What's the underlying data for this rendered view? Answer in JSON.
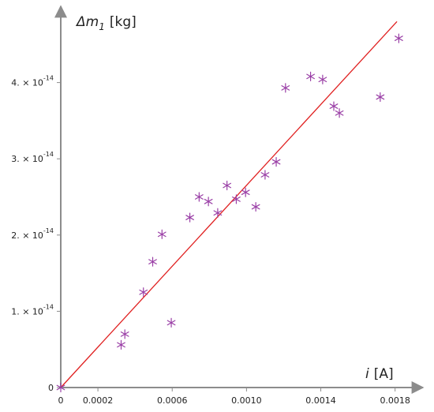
{
  "chart_data": {
    "type": "scatter",
    "xlabel": {
      "symbol": "i",
      "unit": "[A]"
    },
    "ylabel": {
      "symbol": "Δm",
      "subscript": "1",
      "unit": "[kg]"
    },
    "xlim": [
      0,
      0.00195
    ],
    "ylim": [
      0,
      5e-14
    ],
    "x_ticks": [
      {
        "value": 0,
        "label": "0"
      },
      {
        "value": 0.0002,
        "label": "0.0002"
      },
      {
        "value": 0.0006,
        "label": "0.0006"
      },
      {
        "value": 0.001,
        "label": "0.0010"
      },
      {
        "value": 0.0014,
        "label": "0.0014"
      },
      {
        "value": 0.0018,
        "label": "0.0018"
      }
    ],
    "y_ticks": [
      {
        "value": 0,
        "mantissa": "0",
        "exponent": ""
      },
      {
        "value": 1e-14,
        "mantissa": "1. × 10",
        "exponent": "-14"
      },
      {
        "value": 2e-14,
        "mantissa": "2. × 10",
        "exponent": "-14"
      },
      {
        "value": 3e-14,
        "mantissa": "3. × 10",
        "exponent": "-14"
      },
      {
        "value": 4e-14,
        "mantissa": "4. × 10",
        "exponent": "-14"
      }
    ],
    "grid": false,
    "colors": {
      "points": "#9a3fa6",
      "fit_line": "#e02020",
      "axes": "#8c8c8c"
    },
    "series": [
      {
        "kind": "points",
        "marker": "asterisk",
        "points": [
          [
            0.0,
            0.0
          ],
          [
            0.000325,
            5.6e-15
          ],
          [
            0.000345,
            7e-15
          ],
          [
            0.000445,
            1.25e-14
          ],
          [
            0.000495,
            1.65e-14
          ],
          [
            0.000545,
            2.01e-14
          ],
          [
            0.000595,
            8.5e-15
          ],
          [
            0.000695,
            2.23e-14
          ],
          [
            0.000745,
            2.5e-14
          ],
          [
            0.000795,
            2.44e-14
          ],
          [
            0.000845,
            2.29e-14
          ],
          [
            0.000895,
            2.65e-14
          ],
          [
            0.000945,
            2.47e-14
          ],
          [
            0.000995,
            2.56e-14
          ],
          [
            0.00105,
            2.37e-14
          ],
          [
            0.0011,
            2.79e-14
          ],
          [
            0.00116,
            2.96e-14
          ],
          [
            0.00121,
            3.93e-14
          ],
          [
            0.001345,
            4.08e-14
          ],
          [
            0.00141,
            4.04e-14
          ],
          [
            0.00147,
            3.69e-14
          ],
          [
            0.0015,
            3.6e-14
          ],
          [
            0.00172,
            3.81e-14
          ],
          [
            0.00182,
            4.58e-14
          ]
        ]
      },
      {
        "kind": "fit-line",
        "from": [
          0,
          0
        ],
        "to": [
          0.00181,
          4.8e-14
        ]
      }
    ]
  }
}
